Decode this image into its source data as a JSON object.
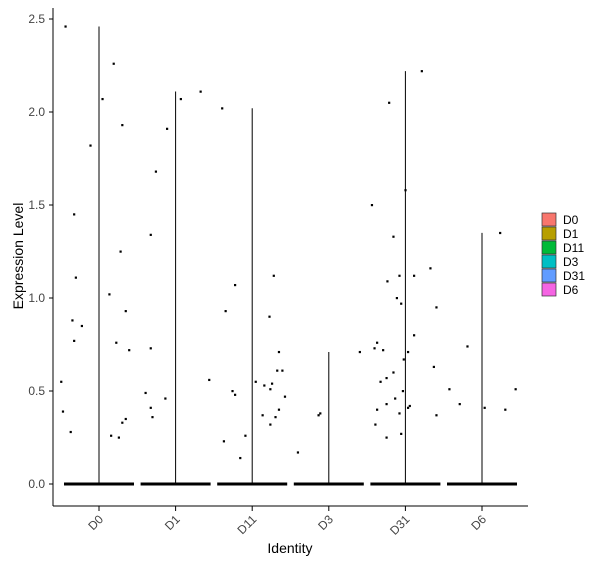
{
  "chart_data": {
    "type": "violin",
    "xlabel": "Identity",
    "ylabel": "Expression Level",
    "categories": [
      "D0",
      "D1",
      "D11",
      "D3",
      "D31",
      "D6"
    ],
    "ylim": [
      -0.12,
      2.57
    ],
    "yticks": [
      0.0,
      0.5,
      1.0,
      1.5,
      2.0,
      2.5
    ],
    "ytick_labels": [
      "0.0",
      "0.5",
      "1.0",
      "1.5",
      "2.0",
      "2.5"
    ],
    "grid": false,
    "legend_position": "right",
    "legend": [
      {
        "label": "D0",
        "color": "#F8766D"
      },
      {
        "label": "D1",
        "color": "#B79F00"
      },
      {
        "label": "D11",
        "color": "#00BA38"
      },
      {
        "label": "D3",
        "color": "#00BFC4"
      },
      {
        "label": "D31",
        "color": "#619CFF"
      },
      {
        "label": "D6",
        "color": "#F564E3"
      }
    ],
    "series": [
      {
        "name": "D0",
        "max": 2.46,
        "points": [
          {
            "x": -0.39,
            "y": 2.46
          },
          {
            "x": 0.17,
            "y": 2.26
          },
          {
            "x": 0.04,
            "y": 2.07
          },
          {
            "x": 0.27,
            "y": 1.93
          },
          {
            "x": -0.1,
            "y": 1.82
          },
          {
            "x": -0.29,
            "y": 1.45
          },
          {
            "x": 0.25,
            "y": 1.25
          },
          {
            "x": -0.27,
            "y": 1.11
          },
          {
            "x": 0.12,
            "y": 1.02
          },
          {
            "x": 0.31,
            "y": 0.93
          },
          {
            "x": -0.31,
            "y": 0.88
          },
          {
            "x": -0.2,
            "y": 0.85
          },
          {
            "x": -0.29,
            "y": 0.77
          },
          {
            "x": 0.2,
            "y": 0.76
          },
          {
            "x": 0.35,
            "y": 0.72
          },
          {
            "x": -0.44,
            "y": 0.55
          },
          {
            "x": -0.42,
            "y": 0.39
          },
          {
            "x": 0.31,
            "y": 0.35
          },
          {
            "x": 0.27,
            "y": 0.33
          },
          {
            "x": -0.33,
            "y": 0.28
          },
          {
            "x": 0.14,
            "y": 0.26
          },
          {
            "x": 0.23,
            "y": 0.25
          }
        ]
      },
      {
        "name": "D1",
        "max": 2.11,
        "points": [
          {
            "x": 0.29,
            "y": 2.11
          },
          {
            "x": 0.06,
            "y": 2.07
          },
          {
            "x": -0.1,
            "y": 1.91
          },
          {
            "x": -0.23,
            "y": 1.68
          },
          {
            "x": -0.29,
            "y": 1.34
          },
          {
            "x": -0.29,
            "y": 0.73
          },
          {
            "x": 0.39,
            "y": 0.56
          },
          {
            "x": -0.35,
            "y": 0.49
          },
          {
            "x": -0.12,
            "y": 0.46
          },
          {
            "x": -0.29,
            "y": 0.41
          },
          {
            "x": -0.27,
            "y": 0.36
          }
        ]
      },
      {
        "name": "D11",
        "max": 2.02,
        "points": [
          {
            "x": -0.35,
            "y": 2.02
          },
          {
            "x": 0.25,
            "y": 1.12
          },
          {
            "x": -0.2,
            "y": 1.07
          },
          {
            "x": -0.31,
            "y": 0.93
          },
          {
            "x": 0.2,
            "y": 0.9
          },
          {
            "x": 0.31,
            "y": 0.71
          },
          {
            "x": 0.29,
            "y": 0.61
          },
          {
            "x": 0.35,
            "y": 0.61
          },
          {
            "x": 0.04,
            "y": 0.55
          },
          {
            "x": 0.23,
            "y": 0.54
          },
          {
            "x": 0.14,
            "y": 0.53
          },
          {
            "x": 0.21,
            "y": 0.51
          },
          {
            "x": -0.23,
            "y": 0.5
          },
          {
            "x": -0.2,
            "y": 0.48
          },
          {
            "x": 0.38,
            "y": 0.47
          },
          {
            "x": 0.31,
            "y": 0.4
          },
          {
            "x": 0.12,
            "y": 0.37
          },
          {
            "x": 0.27,
            "y": 0.36
          },
          {
            "x": 0.21,
            "y": 0.32
          },
          {
            "x": -0.08,
            "y": 0.26
          },
          {
            "x": -0.33,
            "y": 0.23
          },
          {
            "x": -0.14,
            "y": 0.14
          }
        ]
      },
      {
        "name": "D3",
        "max": 0.71,
        "points": [
          {
            "x": 0.36,
            "y": 0.71
          },
          {
            "x": -0.1,
            "y": 0.38
          },
          {
            "x": -0.12,
            "y": 0.37
          },
          {
            "x": -0.36,
            "y": 0.17
          }
        ]
      },
      {
        "name": "D31",
        "max": 2.22,
        "points": [
          {
            "x": 0.19,
            "y": 2.22
          },
          {
            "x": -0.19,
            "y": 2.05
          },
          {
            "x": 0.0,
            "y": 1.58
          },
          {
            "x": -0.39,
            "y": 1.5
          },
          {
            "x": -0.14,
            "y": 1.33
          },
          {
            "x": 0.29,
            "y": 1.16
          },
          {
            "x": -0.07,
            "y": 1.12
          },
          {
            "x": 0.1,
            "y": 1.12
          },
          {
            "x": -0.21,
            "y": 1.09
          },
          {
            "x": -0.1,
            "y": 1.0
          },
          {
            "x": -0.05,
            "y": 0.97
          },
          {
            "x": 0.36,
            "y": 0.95
          },
          {
            "x": 0.1,
            "y": 0.8
          },
          {
            "x": -0.33,
            "y": 0.76
          },
          {
            "x": -0.36,
            "y": 0.73
          },
          {
            "x": -0.26,
            "y": 0.72
          },
          {
            "x": 0.03,
            "y": 0.71
          },
          {
            "x": -0.02,
            "y": 0.67
          },
          {
            "x": 0.33,
            "y": 0.63
          },
          {
            "x": -0.14,
            "y": 0.6
          },
          {
            "x": -0.22,
            "y": 0.57
          },
          {
            "x": -0.29,
            "y": 0.55
          },
          {
            "x": -0.03,
            "y": 0.5
          },
          {
            "x": -0.12,
            "y": 0.46
          },
          {
            "x": -0.22,
            "y": 0.43
          },
          {
            "x": 0.05,
            "y": 0.42
          },
          {
            "x": 0.03,
            "y": 0.41
          },
          {
            "x": -0.33,
            "y": 0.4
          },
          {
            "x": -0.07,
            "y": 0.38
          },
          {
            "x": 0.36,
            "y": 0.37
          },
          {
            "x": -0.35,
            "y": 0.32
          },
          {
            "x": -0.05,
            "y": 0.27
          },
          {
            "x": -0.22,
            "y": 0.25
          }
        ]
      },
      {
        "name": "D6",
        "max": 1.35,
        "points": [
          {
            "x": 0.21,
            "y": 1.35
          },
          {
            "x": -0.17,
            "y": 0.74
          },
          {
            "x": 0.39,
            "y": 0.51
          },
          {
            "x": -0.38,
            "y": 0.51
          },
          {
            "x": -0.26,
            "y": 0.43
          },
          {
            "x": 0.03,
            "y": 0.41
          },
          {
            "x": 0.27,
            "y": 0.4
          }
        ]
      }
    ]
  }
}
